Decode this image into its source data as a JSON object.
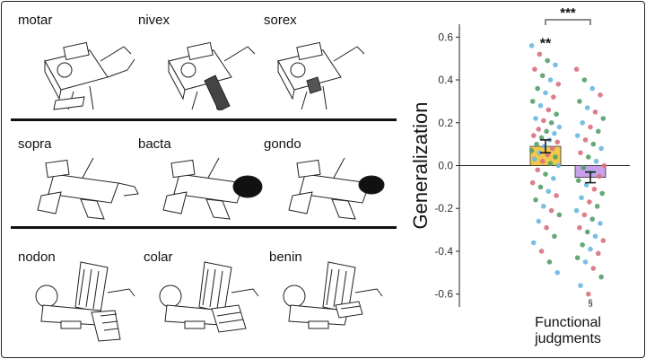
{
  "groups": [
    {
      "items": [
        {
          "label": "motar",
          "variant": "A"
        },
        {
          "label": "nivex",
          "variant": "B"
        },
        {
          "label": "sorex",
          "variant": "C"
        }
      ]
    },
    {
      "items": [
        {
          "label": "sopra",
          "variant": "A"
        },
        {
          "label": "bacta",
          "variant": "B"
        },
        {
          "label": "gondo",
          "variant": "C"
        }
      ]
    },
    {
      "items": [
        {
          "label": "nodon",
          "variant": "A"
        },
        {
          "label": "colar",
          "variant": "B"
        },
        {
          "label": "benin",
          "variant": "C"
        }
      ]
    }
  ],
  "chart_data": {
    "type": "bar",
    "ylabel": "Generalization",
    "xlabel": "Functional judgments",
    "ylim": [
      -0.66,
      0.66
    ],
    "yticks": [
      "0.6",
      "0.4",
      "0.2",
      "0.0",
      "-0.2",
      "-0.4",
      "-0.6"
    ],
    "grid": false,
    "series": [
      {
        "name": "",
        "color": "#f2c84b",
        "mean": 0.09,
        "se": 0.03,
        "significance": "**"
      },
      {
        "name": "",
        "color": "#c9a0ea",
        "mean": -0.055,
        "se": 0.025,
        "significance": "§"
      }
    ],
    "comparison": {
      "label": "***",
      "between": [
        0,
        1
      ]
    },
    "point_colors": [
      "#6cb8e0",
      "#d9707f",
      "#54a06a"
    ],
    "points": [
      [
        0.56,
        0.52,
        0.49,
        0.47,
        0.45,
        0.42,
        0.4,
        0.38,
        0.36,
        0.34,
        0.32,
        0.3,
        0.28,
        0.26,
        0.24,
        0.22,
        0.21,
        0.2,
        0.18,
        0.17,
        0.16,
        0.15,
        0.14,
        0.13,
        0.12,
        0.11,
        0.1,
        0.09,
        0.08,
        0.07,
        0.06,
        0.05,
        0.04,
        0.03,
        0.02,
        0.01,
        0.0,
        -0.02,
        -0.04,
        -0.06,
        -0.08,
        -0.1,
        -0.12,
        -0.14,
        -0.16,
        -0.19,
        -0.21,
        -0.23,
        -0.26,
        -0.29,
        -0.33,
        -0.36,
        -0.4,
        -0.45,
        -0.5
      ],
      [
        0.45,
        0.4,
        0.36,
        0.33,
        0.3,
        0.27,
        0.25,
        0.22,
        0.2,
        0.18,
        0.16,
        0.14,
        0.12,
        0.1,
        0.08,
        0.06,
        0.04,
        0.02,
        0.0,
        -0.01,
        -0.03,
        -0.05,
        -0.07,
        -0.09,
        -0.11,
        -0.13,
        -0.15,
        -0.17,
        -0.19,
        -0.21,
        -0.23,
        -0.25,
        -0.27,
        -0.29,
        -0.31,
        -0.33,
        -0.35,
        -0.37,
        -0.39,
        -0.41,
        -0.43,
        -0.45,
        -0.48,
        -0.52,
        -0.56,
        -0.6
      ]
    ]
  }
}
